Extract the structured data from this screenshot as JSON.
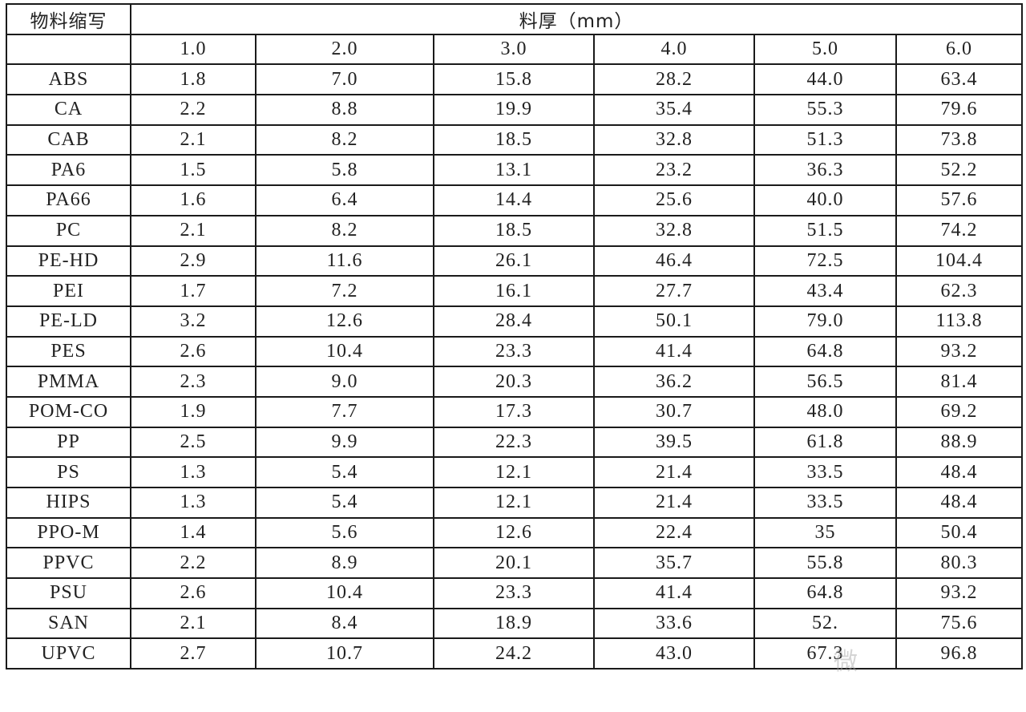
{
  "table": {
    "corner_header": "物料缩写",
    "group_header": "料厚（mm）",
    "thicknesses": [
      "1.0",
      "2.0",
      "3.0",
      "4.0",
      "5.0",
      "6.0"
    ],
    "rows": [
      {
        "material": "ABS",
        "values": [
          "1.8",
          "7.0",
          "15.8",
          "28.2",
          "44.0",
          "63.4"
        ]
      },
      {
        "material": "CA",
        "values": [
          "2.2",
          "8.8",
          "19.9",
          "35.4",
          "55.3",
          "79.6"
        ]
      },
      {
        "material": "CAB",
        "values": [
          "2.1",
          "8.2",
          "18.5",
          "32.8",
          "51.3",
          "73.8"
        ]
      },
      {
        "material": "PA6",
        "values": [
          "1.5",
          "5.8",
          "13.1",
          "23.2",
          "36.3",
          "52.2"
        ]
      },
      {
        "material": "PA66",
        "values": [
          "1.6",
          "6.4",
          "14.4",
          "25.6",
          "40.0",
          "57.6"
        ]
      },
      {
        "material": "PC",
        "values": [
          "2.1",
          "8.2",
          "18.5",
          "32.8",
          "51.5",
          "74.2"
        ]
      },
      {
        "material": "PE-HD",
        "values": [
          "2.9",
          "11.6",
          "26.1",
          "46.4",
          "72.5",
          "104.4"
        ]
      },
      {
        "material": "PEI",
        "values": [
          "1.7",
          "7.2",
          "16.1",
          "27.7",
          "43.4",
          "62.3"
        ]
      },
      {
        "material": "PE-LD",
        "values": [
          "3.2",
          "12.6",
          "28.4",
          "50.1",
          "79.0",
          "113.8"
        ]
      },
      {
        "material": "PES",
        "values": [
          "2.6",
          "10.4",
          "23.3",
          "41.4",
          "64.8",
          "93.2"
        ]
      },
      {
        "material": "PMMA",
        "values": [
          "2.3",
          "9.0",
          "20.3",
          "36.2",
          "56.5",
          "81.4"
        ]
      },
      {
        "material": "POM-CO",
        "values": [
          "1.9",
          "7.7",
          "17.3",
          "30.7",
          "48.0",
          "69.2"
        ]
      },
      {
        "material": "PP",
        "values": [
          "2.5",
          "9.9",
          "22.3",
          "39.5",
          "61.8",
          "88.9"
        ]
      },
      {
        "material": "PS",
        "values": [
          "1.3",
          "5.4",
          "12.1",
          "21.4",
          "33.5",
          "48.4"
        ]
      },
      {
        "material": "HIPS",
        "values": [
          "1.3",
          "5.4",
          "12.1",
          "21.4",
          "33.5",
          "48.4"
        ]
      },
      {
        "material": "PPO-M",
        "values": [
          "1.4",
          "5.6",
          "12.6",
          "22.4",
          "35",
          "50.4"
        ]
      },
      {
        "material": "PPVC",
        "values": [
          "2.2",
          "8.9",
          "20.1",
          "35.7",
          "55.8",
          "80.3"
        ]
      },
      {
        "material": "PSU",
        "values": [
          "2.6",
          "10.4",
          "23.3",
          "41.4",
          "64.8",
          "93.2"
        ]
      },
      {
        "material": "SAN",
        "values": [
          "2.1",
          "8.4",
          "18.9",
          "33.6",
          "52.",
          "75.6"
        ]
      },
      {
        "material": "UPVC",
        "values": [
          "2.7",
          "10.7",
          "24.2",
          "43.0",
          "67.3",
          "96.8"
        ]
      }
    ]
  },
  "watermark": "微"
}
